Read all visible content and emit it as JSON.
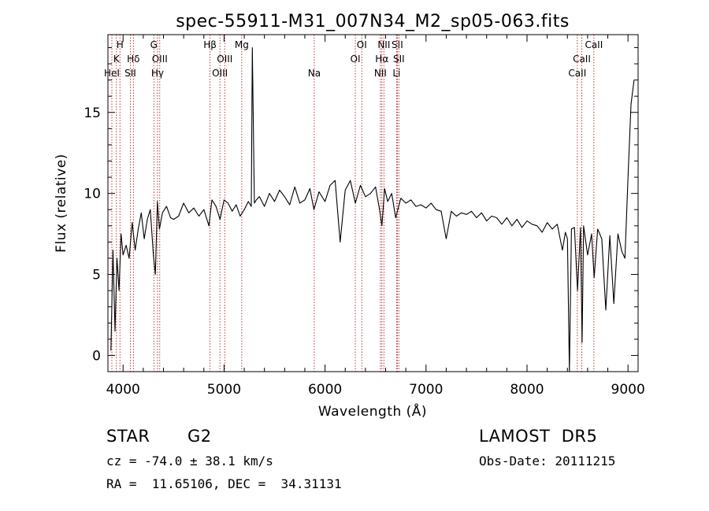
{
  "chart_data": {
    "type": "line",
    "title": "spec-55911-M31_007N34_M2_sp05-063.fits",
    "xlabel": "Wavelength (Å)",
    "ylabel": "Flux (relative)",
    "xlim": [
      3850,
      9100
    ],
    "ylim": [
      -1.0,
      19.8
    ],
    "xticks": [
      4000,
      5000,
      6000,
      7000,
      8000,
      9000
    ],
    "yticks": [
      0,
      5,
      10,
      15
    ],
    "grid": false,
    "spectral_lines": [
      {
        "label": "H",
        "wavelength": 3969,
        "row": 0
      },
      {
        "label": "K",
        "wavelength": 3934,
        "row": 1
      },
      {
        "label": "HeI",
        "wavelength": 3889,
        "row": 2
      },
      {
        "label": "Hδ",
        "wavelength": 4102,
        "row": 1
      },
      {
        "label": "SII",
        "wavelength": 4072,
        "row": 2
      },
      {
        "label": "G",
        "wavelength": 4305,
        "row": 0
      },
      {
        "label": "OIII",
        "wavelength": 4363,
        "row": 1
      },
      {
        "label": "Hγ",
        "wavelength": 4341,
        "row": 2
      },
      {
        "label": "Hβ",
        "wavelength": 4861,
        "row": 0
      },
      {
        "label": "OIII",
        "wavelength": 5007,
        "row": 1
      },
      {
        "label": "OIII",
        "wavelength": 4959,
        "row": 2
      },
      {
        "label": "Mg",
        "wavelength": 5175,
        "row": 0
      },
      {
        "label": "Na",
        "wavelength": 5893,
        "row": 2
      },
      {
        "label": "OI",
        "wavelength": 6364,
        "row": 0
      },
      {
        "label": "OI",
        "wavelength": 6300,
        "row": 1
      },
      {
        "label": "NII",
        "wavelength": 6583,
        "row": 0
      },
      {
        "label": "Hα",
        "wavelength": 6563,
        "row": 1
      },
      {
        "label": "NII",
        "wavelength": 6548,
        "row": 2
      },
      {
        "label": "SII",
        "wavelength": 6716,
        "row": 0
      },
      {
        "label": "SII",
        "wavelength": 6731,
        "row": 1
      },
      {
        "label": "Li",
        "wavelength": 6708,
        "row": 2
      },
      {
        "label": "CaII",
        "wavelength": 8662,
        "row": 0
      },
      {
        "label": "CaII",
        "wavelength": 8542,
        "row": 1
      },
      {
        "label": "CaII",
        "wavelength": 8498,
        "row": 2
      }
    ],
    "series": [
      {
        "x": [
          3880,
          3900,
          3920,
          3940,
          3960,
          3980,
          4000,
          4030,
          4060,
          4090,
          4120,
          4150,
          4180,
          4210,
          4240,
          4270,
          4300,
          4320,
          4340,
          4360,
          4390,
          4430,
          4470,
          4500,
          4550,
          4600,
          4650,
          4700,
          4750,
          4800,
          4850,
          4880,
          4920,
          4960,
          5000,
          5040,
          5080,
          5120,
          5160,
          5200,
          5240,
          5270,
          5280,
          5300,
          5320,
          5350,
          5400,
          5450,
          5500,
          5550,
          5600,
          5650,
          5700,
          5750,
          5800,
          5850,
          5890,
          5940,
          6000,
          6050,
          6100,
          6150,
          6200,
          6250,
          6300,
          6350,
          6400,
          6450,
          6500,
          6540,
          6563,
          6590,
          6620,
          6660,
          6700,
          6750,
          6800,
          6850,
          6900,
          6950,
          7000,
          7050,
          7100,
          7150,
          7200,
          7250,
          7300,
          7350,
          7400,
          7450,
          7500,
          7550,
          7600,
          7650,
          7700,
          7750,
          7800,
          7850,
          7900,
          7950,
          8000,
          8050,
          8100,
          8150,
          8200,
          8250,
          8300,
          8350,
          8380,
          8400,
          8420,
          8440,
          8470,
          8500,
          8530,
          8545,
          8560,
          8600,
          8640,
          8665,
          8700,
          8740,
          8780,
          8820,
          8860,
          8900,
          8940,
          8970,
          9000,
          9030,
          9060
        ],
        "values": [
          0.3,
          6.5,
          1.5,
          6.0,
          4.0,
          7.5,
          6.2,
          6.8,
          6.0,
          8.2,
          6.5,
          7.8,
          8.8,
          7.2,
          8.4,
          9.0,
          6.2,
          5.0,
          9.5,
          7.8,
          8.8,
          9.2,
          8.5,
          8.4,
          8.6,
          9.4,
          8.8,
          9.1,
          8.6,
          9.0,
          8.0,
          9.6,
          9.2,
          8.4,
          9.6,
          9.4,
          8.9,
          9.3,
          8.6,
          9.0,
          9.5,
          9.2,
          19.0,
          9.4,
          9.6,
          9.8,
          9.2,
          10.0,
          9.5,
          10.2,
          9.8,
          9.3,
          10.4,
          9.4,
          9.6,
          10.3,
          9.0,
          10.1,
          9.5,
          10.5,
          10.8,
          7.0,
          10.2,
          10.8,
          9.4,
          10.5,
          9.8,
          10.0,
          10.4,
          9.0,
          8.0,
          10.3,
          9.5,
          10.0,
          8.5,
          9.7,
          9.4,
          9.6,
          9.2,
          9.3,
          9.1,
          9.4,
          9.0,
          8.9,
          7.2,
          8.9,
          8.6,
          8.8,
          8.7,
          8.9,
          8.5,
          8.8,
          8.3,
          8.6,
          8.5,
          8.1,
          8.5,
          8.0,
          8.4,
          7.9,
          8.3,
          8.1,
          8.0,
          7.6,
          8.2,
          7.8,
          8.1,
          6.5,
          7.6,
          7.2,
          -1.0,
          7.8,
          7.9,
          4.0,
          7.9,
          0.8,
          8.0,
          6.2,
          7.5,
          4.8,
          7.8,
          7.2,
          2.8,
          7.4,
          3.2,
          7.5,
          6.4,
          6.0,
          11.0,
          15.5,
          17.0
        ]
      }
    ]
  },
  "info": {
    "object_type": "STAR",
    "subclass": "G2",
    "survey": "LAMOST  DR5",
    "redshift": "cz = -74.0 ± 38.1 km/s",
    "obs_date": "Obs-Date: 20111215",
    "coords": "RA =  11.65106, DEC =  34.31131"
  }
}
